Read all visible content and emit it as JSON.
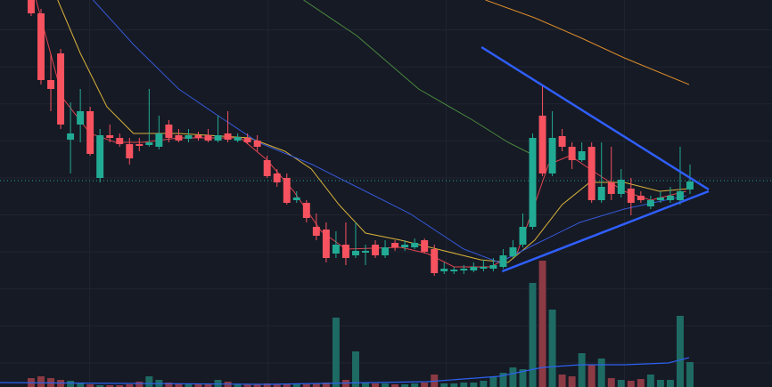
{
  "chart_data": {
    "type": "candlestick",
    "up_color": "#22ab94",
    "down_color": "#f7525f",
    "volume_up_color": "#1e6b64",
    "volume_down_color": "#8c3a44",
    "xlim": [
      -3.17,
      75.34
    ],
    "ylim": [
      0,
      320
    ],
    "volume_ylim": [
      0,
      150
    ],
    "x": [
      0,
      1,
      2,
      3,
      4,
      5,
      6,
      7,
      8,
      9,
      10,
      11,
      12,
      13,
      14,
      15,
      16,
      17,
      18,
      19,
      20,
      21,
      22,
      23,
      24,
      25,
      26,
      27,
      28,
      29,
      30,
      31,
      32,
      33,
      34,
      35,
      36,
      37,
      38,
      39,
      40,
      41,
      42,
      43,
      44,
      45,
      46,
      47,
      48,
      49,
      50,
      51,
      52,
      53,
      54,
      55,
      56,
      57,
      58,
      59,
      60,
      61,
      62,
      63,
      64,
      65,
      66,
      67
    ],
    "open": [
      320,
      305,
      230,
      260,
      163,
      180,
      195,
      120,
      168,
      165,
      158,
      158,
      157,
      155,
      180,
      168,
      164,
      168,
      168,
      162,
      170,
      162,
      165,
      162,
      140,
      125,
      120,
      95,
      92,
      65,
      62,
      35,
      45,
      33,
      36,
      45,
      33,
      47,
      42,
      42,
      50,
      40,
      15,
      15,
      16,
      16,
      18,
      18,
      20,
      32,
      45,
      65,
      190,
      125,
      167,
      155,
      140,
      155,
      95,
      115,
      102,
      108,
      100,
      88,
      95,
      95,
      95,
      107
    ],
    "high": [
      330,
      310,
      260,
      265,
      205,
      220,
      200,
      175,
      180,
      170,
      165,
      165,
      220,
      190,
      185,
      175,
      175,
      172,
      175,
      190,
      195,
      170,
      170,
      168,
      145,
      130,
      125,
      105,
      95,
      80,
      70,
      60,
      70,
      70,
      45,
      50,
      50,
      50,
      50,
      52,
      52,
      45,
      25,
      20,
      22,
      25,
      28,
      30,
      40,
      50,
      80,
      170,
      225,
      195,
      175,
      160,
      160,
      160,
      160,
      155,
      130,
      120,
      105,
      100,
      105,
      110,
      155,
      135
    ],
    "low": [
      302,
      225,
      195,
      175,
      125,
      160,
      145,
      115,
      160,
      155,
      135,
      150,
      155,
      152,
      160,
      160,
      160,
      162,
      160,
      160,
      160,
      160,
      158,
      150,
      120,
      110,
      90,
      92,
      70,
      50,
      25,
      30,
      22,
      30,
      22,
      30,
      30,
      38,
      38,
      40,
      35,
      10,
      12,
      12,
      12,
      14,
      15,
      15,
      18,
      30,
      42,
      62,
      122,
      122,
      150,
      130,
      138,
      92,
      92,
      95,
      98,
      78,
      92,
      85,
      92,
      92,
      90,
      102
    ],
    "close": [
      305,
      230,
      220,
      180,
      170,
      195,
      147,
      168,
      165,
      158,
      142,
      156,
      160,
      170,
      165,
      162,
      168,
      165,
      162,
      168,
      163,
      166,
      160,
      155,
      122,
      115,
      92,
      98,
      75,
      55,
      30,
      45,
      30,
      38,
      38,
      33,
      42,
      42,
      45,
      47,
      37,
      13,
      18,
      17,
      18,
      20,
      20,
      22,
      33,
      42,
      65,
      165,
      125,
      165,
      155,
      140,
      150,
      95,
      110,
      102,
      118,
      92,
      95,
      95,
      98,
      100,
      105,
      116
    ],
    "volume": [
      10,
      12,
      10,
      8,
      7,
      4,
      3,
      2,
      2,
      2,
      3,
      6,
      12,
      8,
      5,
      4,
      3,
      3,
      3,
      8,
      6,
      3,
      3,
      3,
      4,
      3,
      3,
      3,
      3,
      4,
      5,
      78,
      8,
      40,
      5,
      4,
      4,
      3,
      3,
      4,
      5,
      14,
      4,
      4,
      5,
      5,
      7,
      12,
      16,
      22,
      20,
      117,
      142,
      87,
      14,
      12,
      38,
      25,
      32,
      10,
      8,
      7,
      9,
      14,
      8,
      8,
      80,
      28
    ],
    "lines": [
      {
        "color": "#e0454f",
        "x": [
          0.5,
          3.2,
          6,
          8.6,
          11.3,
          15,
          21.3,
          24,
          26.7,
          29.5,
          32,
          37.6,
          40.3,
          43,
          46.7,
          49.4,
          51.2,
          52.6,
          54.8,
          57.5,
          60.3,
          63,
          66.6
        ],
        "values": [
          320,
          210,
          170,
          160,
          160,
          165,
          165,
          140,
          105,
          60,
          40,
          42,
          35,
          20,
          20,
          35,
          90,
          135,
          145,
          125,
          105,
          95,
          105
        ]
      },
      {
        "color": "#d9b23a",
        "x": [
          2.7,
          5,
          7.7,
          10.4,
          15,
          22.2,
          25.8,
          28.5,
          31.3,
          34,
          37.6,
          41.3,
          45.7,
          48.5,
          51.2,
          54,
          56.8,
          60.3,
          63.9,
          67
        ],
        "values": [
          320,
          260,
          200,
          170,
          170,
          165,
          150,
          130,
          90,
          58,
          50,
          40,
          28,
          25,
          50,
          90,
          115,
          115,
          105,
          108
        ]
      },
      {
        "color": "#3558d6",
        "x": [
          6.3,
          10.4,
          15,
          19,
          23.1,
          28.6,
          33.1,
          38.5,
          44,
          47.6,
          51.2,
          55.8,
          60.3,
          66.6
        ],
        "values": [
          320,
          270,
          220,
          190,
          160,
          135,
          110,
          80,
          40,
          25,
          45,
          70,
          85,
          100
        ]
      },
      {
        "color": "#4a8a3d",
        "x": [
          27.7,
          33.1,
          39.4,
          44.9,
          48.5,
          51.2
        ],
        "values": [
          320,
          280,
          220,
          185,
          160,
          145
        ]
      },
      {
        "color": "#d98b2b",
        "x": [
          46.2,
          51.2,
          55.8,
          60.3,
          66.9
        ],
        "values": [
          320,
          300,
          278,
          255,
          225
        ]
      }
    ],
    "trendlines": [
      {
        "color": "#2f5fff",
        "x": [
          45.8,
          68.9
        ],
        "values": [
          267,
          107
        ]
      },
      {
        "color": "#2f5fff",
        "x": [
          47.9,
          68.9
        ],
        "values": [
          15,
          105
        ]
      }
    ],
    "volume_ma": {
      "color": "#2d62f0",
      "x": [
        -3.17,
        24,
        40.3,
        47.6,
        52,
        55.8,
        60.3,
        64.8,
        66.9
      ],
      "values": [
        5,
        3,
        6,
        12,
        22,
        25,
        25,
        27,
        33
      ]
    },
    "price_line": {
      "color": "#26a69a",
      "value": 117
    }
  }
}
